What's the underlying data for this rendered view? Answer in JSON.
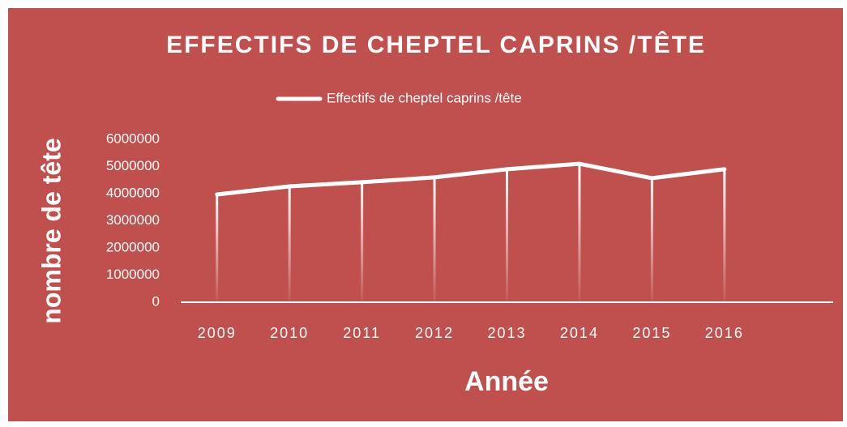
{
  "chart_data": {
    "type": "line",
    "title": "EFFECTIFS DE CHEPTEL  CAPRINS /TÊTE",
    "x_label": "Année",
    "y_label": "nombre de tête",
    "categories": [
      "2009",
      "2010",
      "2011",
      "2012",
      "2013",
      "2014",
      "2015",
      "2016",
      null
    ],
    "series": [
      {
        "name": "Effectifs de cheptel  caprins /tête",
        "color": "#ffffff",
        "values": [
          3970000,
          4270000,
          4420000,
          4600000,
          4900000,
          5100000,
          4570000,
          4900000,
          null
        ]
      }
    ],
    "ylim": [
      0,
      6000000
    ],
    "yticks": [
      0,
      1000000,
      2000000,
      3000000,
      4000000,
      5000000,
      6000000
    ],
    "drop_lines": true,
    "legend": "top",
    "background": "#c0504d"
  }
}
